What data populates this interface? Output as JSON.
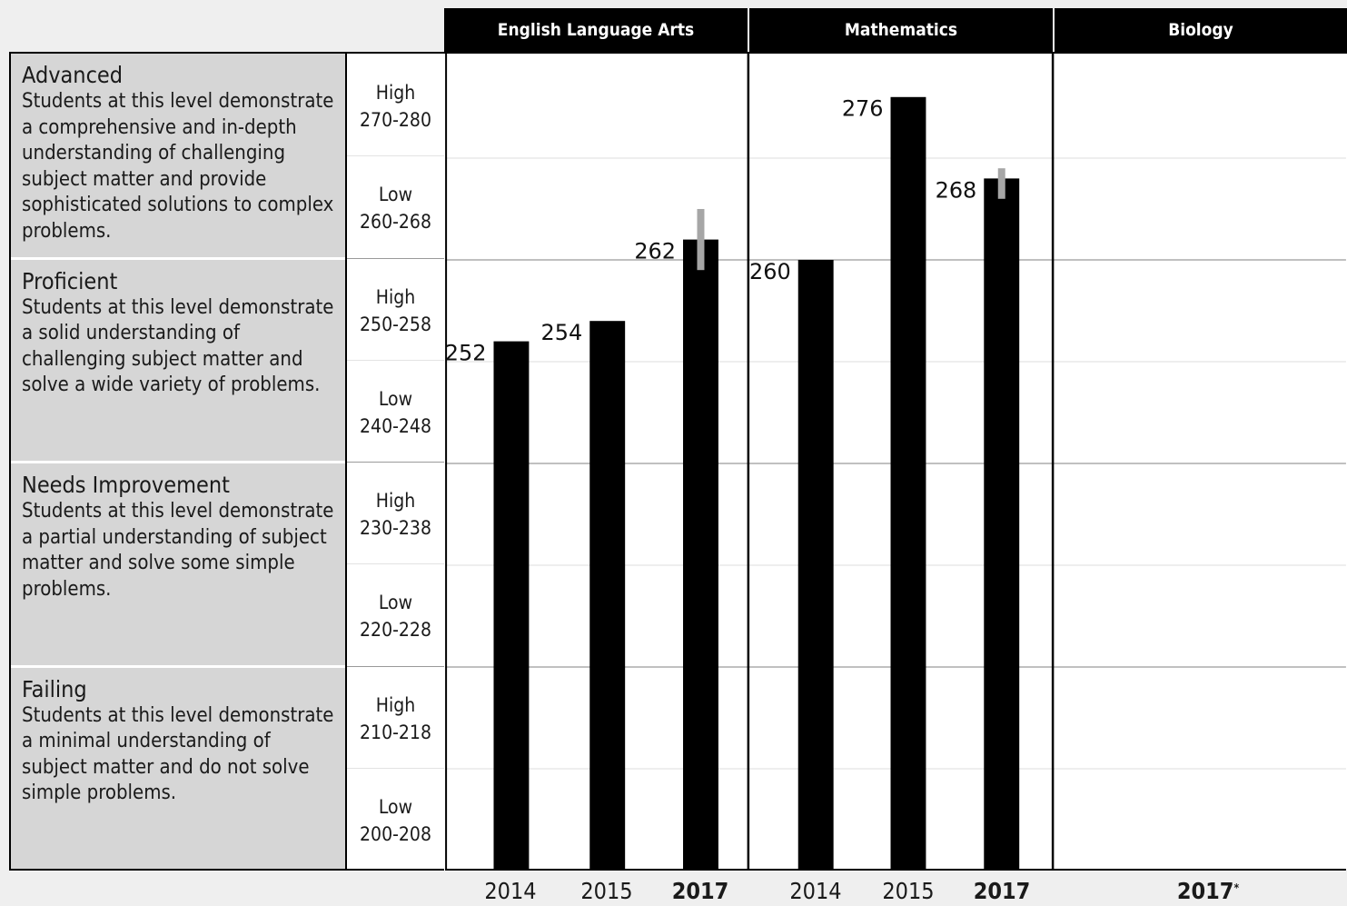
{
  "chart_data": {
    "type": "bar",
    "subjects": [
      {
        "name": "English Language Arts",
        "categories": [
          "2014",
          "2015",
          "2017"
        ],
        "values": [
          252,
          254,
          262
        ],
        "bold_categories": [
          "2017"
        ],
        "error_bar": {
          "category": "2017",
          "low": 259,
          "high": 265
        }
      },
      {
        "name": "Mathematics",
        "categories": [
          "2014",
          "2015",
          "2017"
        ],
        "values": [
          260,
          276,
          268
        ],
        "bold_categories": [
          "2017"
        ],
        "error_bar": {
          "category": "2017",
          "low": 266,
          "high": 269
        }
      },
      {
        "name": "Biology",
        "categories": [
          "2017"
        ],
        "category_markers": [
          "*"
        ],
        "values": [],
        "bold_categories": [
          "2017"
        ]
      }
    ],
    "ylim": [
      200,
      280
    ],
    "achievement_levels": [
      {
        "name": "Advanced",
        "description": "Students at this level demonstrate a comprehensive and in-depth understanding of challenging subject matter and provide sophisticated solutions to complex problems."
      },
      {
        "name": "Proficient",
        "description": "Students at this level demonstrate a solid understanding of challenging subject matter and solve a wide variety of problems."
      },
      {
        "name": "Needs Improvement",
        "description": "Students at this level demonstrate a partial understanding of subject matter and solve some simple problems."
      },
      {
        "name": "Failing",
        "description": "Students at this level demonstrate a minimal understanding of subject matter and do not solve simple problems."
      }
    ],
    "score_bands": [
      {
        "label": "High",
        "range": "270-280"
      },
      {
        "label": "Low",
        "range": "260-268"
      },
      {
        "label": "High",
        "range": "250-258"
      },
      {
        "label": "Low",
        "range": "240-248"
      },
      {
        "label": "High",
        "range": "230-238"
      },
      {
        "label": "Low",
        "range": "220-228"
      },
      {
        "label": "High",
        "range": "210-218"
      },
      {
        "label": "Low",
        "range": "200-208"
      }
    ]
  },
  "colors": {
    "header_bg": "#000000",
    "header_text": "#ffffff",
    "bar": "#000000",
    "error_bar": "#a6a6a6",
    "level_panel": "#d6d6d6",
    "plot_bg": "#ffffff",
    "gridline": "#e3e3e3",
    "level_boundary": "#9a9a9a"
  }
}
